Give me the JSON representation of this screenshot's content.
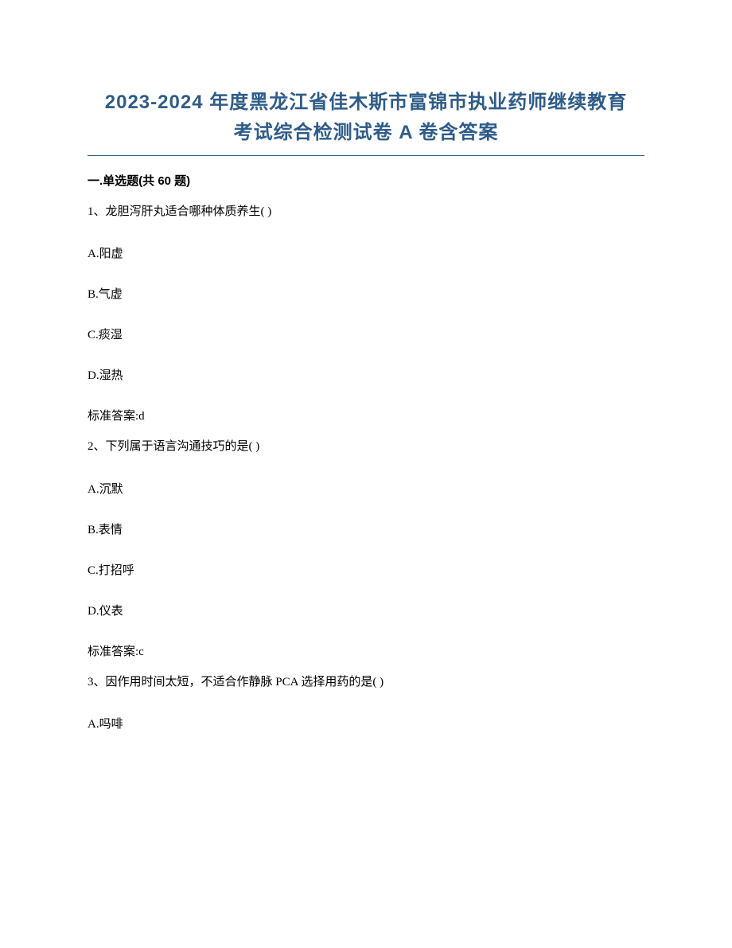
{
  "title_line1": "2023-2024 年度黑龙江省佳木斯市富锦市执业药师继续教育",
  "title_line2": "考试综合检测试卷 A 卷含答案",
  "section_header": "一.单选题(共 60 题)",
  "questions": [
    {
      "text": "1、龙胆泻肝丸适合哪种体质养生( )",
      "options": [
        "A.阳虚",
        "B.气虚",
        "C.痰湿",
        "D.湿热"
      ],
      "answer": "标准答案:d"
    },
    {
      "text": "2、下列属于语言沟通技巧的是( )",
      "options": [
        "A.沉默",
        "B.表情",
        "C.打招呼",
        "D.仪表"
      ],
      "answer": "标准答案:c"
    },
    {
      "text": "3、因作用时间太短，不适合作静脉 PCA 选择用药的是( )",
      "options": [
        "A.吗啡"
      ],
      "answer": null
    }
  ],
  "colors": {
    "title_color": "#2e5c8a",
    "text_color": "#000000",
    "background_color": "#ffffff",
    "underline_color": "#2e5c8a"
  },
  "typography": {
    "title_fontsize": 24,
    "body_fontsize": 15,
    "title_font": "Microsoft YaHei",
    "body_font": "SimSun"
  }
}
